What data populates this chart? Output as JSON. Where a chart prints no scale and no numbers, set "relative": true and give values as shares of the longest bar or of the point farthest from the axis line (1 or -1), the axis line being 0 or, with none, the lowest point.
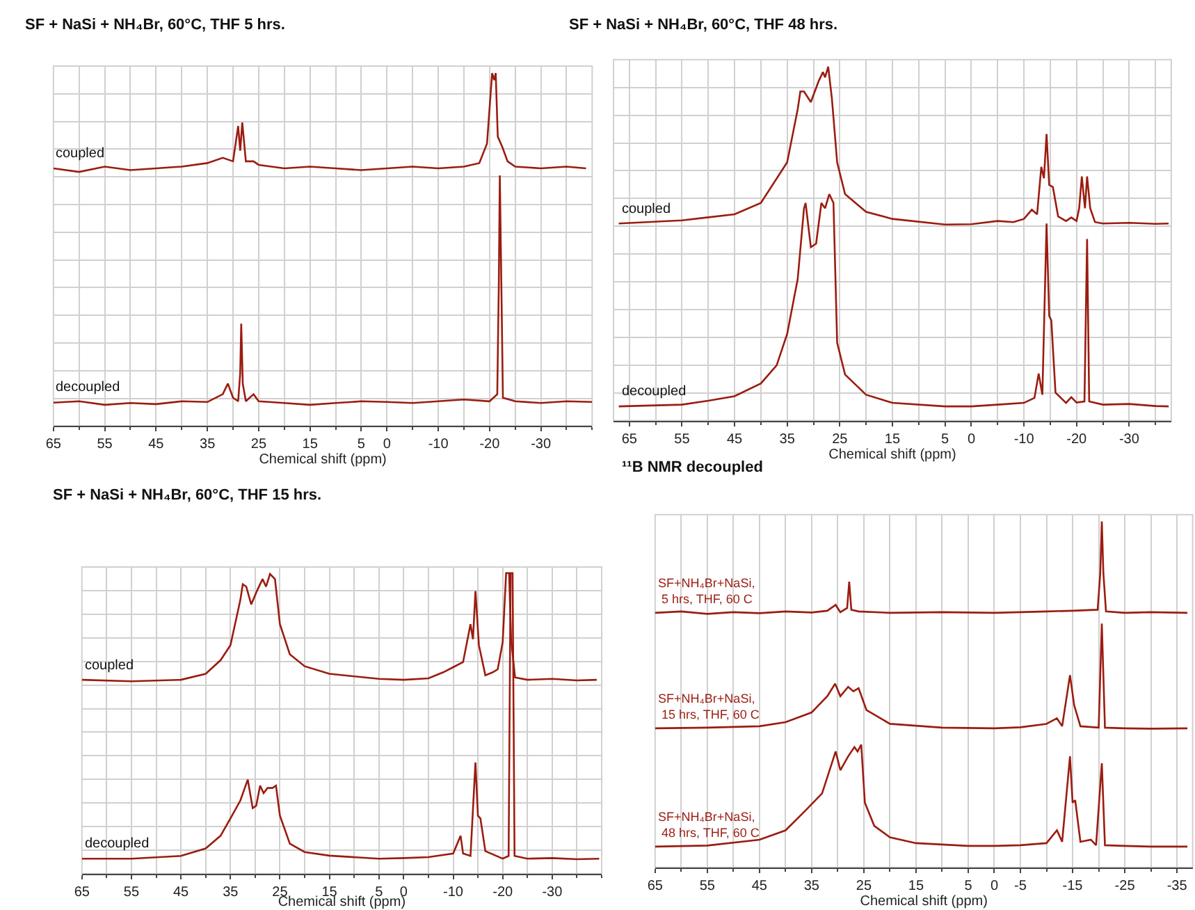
{
  "chart_data": [
    {
      "type": "line",
      "title": "SF + NaSi + NH₄Br, 60°C, THF 5 hrs.",
      "xlabel": "Chemical shift (ppm)",
      "xlim": [
        65,
        -40
      ],
      "xticks": [
        65,
        55,
        45,
        35,
        25,
        15,
        5,
        0,
        -10,
        -20,
        -30
      ],
      "relative": true,
      "grid": true,
      "tick_labels": "x",
      "series": [
        {
          "name": "coupled",
          "color": "#9b1c10",
          "x": [
            65,
            60,
            55,
            50,
            45,
            40,
            35,
            32,
            30,
            29,
            28.6,
            28.2,
            27.5,
            26,
            25,
            20,
            15,
            10,
            5,
            0,
            -5,
            -10,
            -15,
            -18,
            -19.5,
            -20.5,
            -20.9,
            -21.2,
            -21.6,
            -22.5,
            -23.5,
            -25,
            -30,
            -35,
            -38.8
          ],
          "values": [
            0.73,
            0.72,
            0.735,
            0.725,
            0.73,
            0.735,
            0.745,
            0.76,
            0.75,
            0.85,
            0.78,
            0.86,
            0.75,
            0.75,
            0.74,
            0.73,
            0.735,
            0.73,
            0.725,
            0.73,
            0.735,
            0.73,
            0.735,
            0.745,
            0.8,
            1.0,
            0.98,
            1.0,
            0.82,
            0.79,
            0.75,
            0.735,
            0.73,
            0.735,
            0.73
          ]
        },
        {
          "name": "decoupled",
          "color": "#9b1c10",
          "x": [
            65,
            60,
            55,
            50,
            45,
            40,
            35,
            32,
            31,
            30,
            29,
            28.6,
            28.4,
            28.1,
            27.5,
            26,
            25,
            20,
            15,
            10,
            5,
            0,
            -5,
            -10,
            -15,
            -20,
            -21.5,
            -21.8,
            -22,
            -22.3,
            -22.6,
            -25,
            -30,
            -35,
            -40
          ],
          "values": [
            0.066,
            0.07,
            0.06,
            0.065,
            0.062,
            0.07,
            0.068,
            0.09,
            0.12,
            0.08,
            0.07,
            0.15,
            0.29,
            0.12,
            0.07,
            0.09,
            0.07,
            0.065,
            0.06,
            0.065,
            0.07,
            0.068,
            0.065,
            0.07,
            0.075,
            0.07,
            0.09,
            0.4,
            0.71,
            0.4,
            0.08,
            0.07,
            0.065,
            0.07,
            0.068
          ]
        }
      ]
    },
    {
      "type": "line",
      "title": "SF + NaSi + NH₄Br, 60°C, THF 48 hrs.",
      "xlabel": "Chemical shift (ppm)",
      "xlim": [
        68,
        -38
      ],
      "xticks": [
        65,
        55,
        45,
        35,
        25,
        15,
        5,
        0,
        -10,
        -20,
        -30
      ],
      "relative": true,
      "grid": true,
      "tick_labels": "x",
      "series": [
        {
          "name": "coupled",
          "color": "#9b1c10",
          "x": [
            67,
            55,
            45,
            40,
            35,
            33,
            32.5,
            31.8,
            30.5,
            29,
            28.2,
            27.8,
            27.2,
            26.5,
            25.5,
            24,
            20,
            15,
            5,
            0,
            -5,
            -8,
            -10,
            -11.5,
            -12.5,
            -13.3,
            -13.8,
            -14.3,
            -14.8,
            -15.5,
            -16.5,
            -18,
            -19,
            -20,
            -20.5,
            -21,
            -21.6,
            -22,
            -22.6,
            -23.5,
            -25,
            -30,
            -35,
            -37.5
          ],
          "values": [
            0.557,
            0.566,
            0.583,
            0.615,
            0.73,
            0.88,
            0.93,
            0.93,
            0.9,
            0.96,
            0.985,
            0.97,
            1.0,
            0.91,
            0.73,
            0.64,
            0.59,
            0.57,
            0.554,
            0.555,
            0.564,
            0.561,
            0.57,
            0.596,
            0.583,
            0.717,
            0.685,
            0.81,
            0.666,
            0.66,
            0.577,
            0.564,
            0.574,
            0.564,
            0.6,
            0.69,
            0.6,
            0.69,
            0.6,
            0.561,
            0.557,
            0.559,
            0.556,
            0.557
          ]
        },
        {
          "name": "decoupled",
          "color": "#9b1c10",
          "x": [
            67,
            55,
            50,
            45,
            40,
            37,
            35,
            33,
            31.8,
            31.5,
            30.5,
            29.5,
            28.5,
            27.8,
            27,
            26.2,
            25.5,
            24,
            20,
            15,
            5,
            0,
            -5,
            -10,
            -12,
            -12.8,
            -13.5,
            -14.3,
            -14.8,
            -15.2,
            -16,
            -18,
            -19,
            -20,
            -21.5,
            -22,
            -22.4,
            -25,
            -30,
            -35,
            -37.5
          ],
          "values": [
            0.04,
            0.045,
            0.056,
            0.069,
            0.105,
            0.156,
            0.245,
            0.4,
            0.6,
            0.615,
            0.49,
            0.5,
            0.615,
            0.6,
            0.64,
            0.615,
            0.22,
            0.13,
            0.073,
            0.05,
            0.04,
            0.04,
            0.045,
            0.05,
            0.064,
            0.133,
            0.073,
            0.557,
            0.296,
            0.283,
            0.079,
            0.05,
            0.066,
            0.051,
            0.054,
            0.513,
            0.054,
            0.045,
            0.047,
            0.041,
            0.04
          ]
        }
      ]
    },
    {
      "type": "line",
      "title": "SF + NaSi + NH₄Br, 60°C, THF 15 hrs.",
      "xlabel": "Chemical shift (ppm)",
      "xlim": [
        65,
        -40
      ],
      "xticks": [
        65,
        55,
        45,
        35,
        25,
        15,
        5,
        0,
        -10,
        -20,
        -30
      ],
      "relative": true,
      "grid": true,
      "tick_labels": "x",
      "series": [
        {
          "name": "coupled",
          "color": "#9b1c10",
          "x": [
            65,
            55,
            45,
            40,
            37,
            35,
            33,
            32.5,
            31.8,
            30.8,
            29.5,
            28.5,
            27.8,
            27,
            26,
            25,
            23,
            20,
            15,
            5,
            0,
            -5,
            -8,
            -10,
            -12,
            -13.5,
            -14,
            -14.5,
            -15.2,
            -16.5,
            -18,
            -19,
            -20,
            -20.7,
            -21.3,
            -21.7,
            -22.5,
            -25,
            -30,
            -35,
            -39
          ],
          "values": [
            0.645,
            0.64,
            0.645,
            0.665,
            0.71,
            0.76,
            0.91,
            0.963,
            0.955,
            0.896,
            0.946,
            0.98,
            0.955,
            0.997,
            0.98,
            0.83,
            0.73,
            0.69,
            0.665,
            0.648,
            0.645,
            0.65,
            0.67,
            0.687,
            0.704,
            0.83,
            0.78,
            0.94,
            0.76,
            0.66,
            0.67,
            0.68,
            0.77,
            1.0,
            1.0,
            0.78,
            0.653,
            0.645,
            0.648,
            0.643,
            0.645
          ]
        },
        {
          "name": "decoupled",
          "color": "#9b1c10",
          "x": [
            65,
            55,
            45,
            40,
            37,
            35,
            33,
            31.5,
            30.5,
            29.8,
            29,
            28.3,
            27.5,
            26.5,
            25.8,
            25,
            23,
            20,
            15,
            5,
            0,
            -5,
            -10,
            -11.5,
            -12,
            -13.5,
            -14.5,
            -15,
            -15.5,
            -16.5,
            -20,
            -21.2,
            -21.6,
            -22,
            -22.4,
            -25,
            -30,
            -35,
            -39.5
          ],
          "values": [
            0.05,
            0.05,
            0.059,
            0.084,
            0.126,
            0.184,
            0.243,
            0.313,
            0.218,
            0.226,
            0.293,
            0.268,
            0.285,
            0.285,
            0.293,
            0.193,
            0.1,
            0.072,
            0.06,
            0.05,
            0.052,
            0.055,
            0.067,
            0.126,
            0.067,
            0.059,
            0.37,
            0.193,
            0.184,
            0.075,
            0.05,
            0.059,
            1.0,
            1.0,
            0.059,
            0.05,
            0.052,
            0.048,
            0.05
          ]
        }
      ]
    },
    {
      "type": "line",
      "title": "¹¹B NMR decoupled",
      "xlabel": "Chemical shift (ppm)",
      "xlim": [
        65,
        -38
      ],
      "xticks": [
        65,
        55,
        45,
        35,
        25,
        15,
        5,
        0,
        -5,
        -15,
        -25,
        -35
      ],
      "relative": true,
      "grid": "x",
      "tick_labels": "x",
      "series": [
        {
          "name": "SF+NH₄Br+NaSi,  5 hrs, THF, 60 C",
          "color": "#9b1c10",
          "x": [
            65,
            60,
            55,
            50,
            45,
            40,
            35,
            32,
            30.4,
            29.5,
            28.2,
            27.8,
            27.4,
            26,
            20,
            10,
            0,
            -10,
            -15,
            -19.8,
            -20.3,
            -20.6,
            -20.9,
            -21.4,
            -25,
            -30,
            -37
          ],
          "values": [
            0.736,
            0.74,
            0.733,
            0.738,
            0.735,
            0.74,
            0.737,
            0.742,
            0.759,
            0.738,
            0.75,
            0.826,
            0.745,
            0.74,
            0.736,
            0.738,
            0.736,
            0.74,
            0.742,
            0.745,
            0.85,
            1.0,
            0.85,
            0.74,
            0.736,
            0.738,
            0.736
          ]
        },
        {
          "name": "SF+NH₄Br+NaSi,  15 hrs, THF, 60 C",
          "color": "#9b1c10",
          "x": [
            65,
            55,
            45,
            40,
            35,
            32,
            30.5,
            29.5,
            28,
            27,
            26,
            24.5,
            20,
            10,
            0,
            -5,
            -10,
            -12,
            -13,
            -14.5,
            -15.3,
            -16.5,
            -20,
            -20.6,
            -21.2,
            -25,
            -30,
            -37
          ],
          "values": [
            0.402,
            0.404,
            0.408,
            0.42,
            0.448,
            0.495,
            0.531,
            0.495,
            0.522,
            0.509,
            0.518,
            0.455,
            0.415,
            0.404,
            0.402,
            0.405,
            0.415,
            0.431,
            0.408,
            0.556,
            0.469,
            0.408,
            0.404,
            0.705,
            0.404,
            0.402,
            0.401,
            0.402
          ]
        },
        {
          "name": "SF+NH₄Br+NaSi,  48 hrs, THF, 60 C",
          "color": "#9b1c10",
          "x": [
            65,
            55,
            45,
            40,
            36,
            33,
            30.4,
            29.5,
            28,
            26.8,
            26.2,
            25.5,
            24.8,
            23,
            20,
            15,
            5,
            0,
            -5,
            -10,
            -12,
            -13,
            -14.5,
            -15,
            -15.5,
            -16.5,
            -18.5,
            -19.5,
            -20.6,
            -21.2,
            -25,
            -30,
            -37
          ],
          "values": [
            0.06,
            0.063,
            0.08,
            0.107,
            0.167,
            0.214,
            0.335,
            0.281,
            0.321,
            0.348,
            0.335,
            0.355,
            0.187,
            0.12,
            0.087,
            0.07,
            0.062,
            0.062,
            0.064,
            0.07,
            0.107,
            0.074,
            0.321,
            0.187,
            0.194,
            0.074,
            0.08,
            0.064,
            0.301,
            0.064,
            0.062,
            0.06,
            0.06
          ]
        }
      ]
    }
  ]
}
